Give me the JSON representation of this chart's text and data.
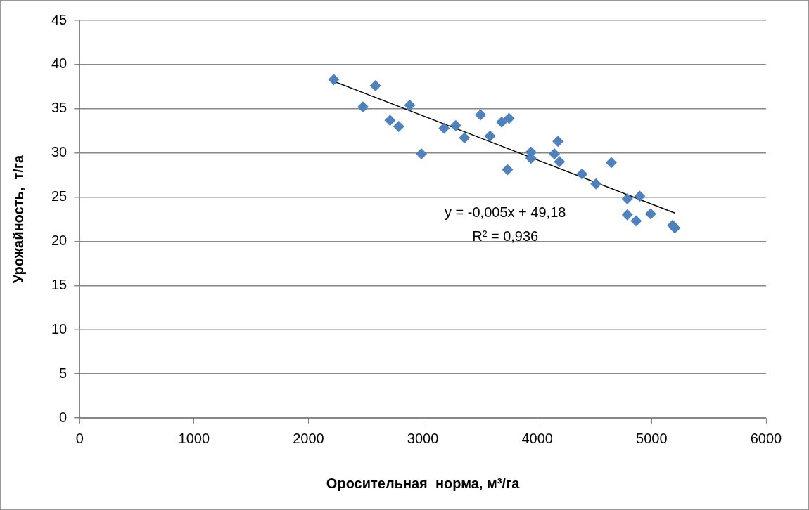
{
  "chart_data": {
    "type": "scatter",
    "xlabel": "Оросительная  норма, м³/га",
    "ylabel": "Урожайность,  т/га",
    "xlim": [
      0,
      6000
    ],
    "xticks": [
      0,
      1000,
      2000,
      3000,
      4000,
      5000,
      6000
    ],
    "ylim": [
      0,
      45
    ],
    "yticks": [
      0,
      5,
      10,
      15,
      20,
      25,
      30,
      35,
      40,
      45
    ],
    "grid": "y",
    "legend": false,
    "marker": "diamond",
    "series": [
      {
        "color": "#4f81bd",
        "x": [
          2221,
          2477,
          2585,
          2713,
          2789,
          2885,
          2987,
          3185,
          3287,
          3364,
          3504,
          3587,
          3689,
          3740,
          3753,
          3945,
          3945,
          4149,
          4181,
          4194,
          4391,
          4513,
          4647,
          4787,
          4787,
          4864,
          4896,
          4991,
          5183,
          5202
        ],
        "values": [
          38.3,
          35.2,
          37.6,
          33.7,
          33.0,
          35.4,
          29.9,
          32.8,
          33.1,
          31.7,
          34.3,
          31.9,
          33.5,
          28.1,
          33.9,
          30.1,
          29.4,
          29.9,
          31.3,
          29.0,
          27.6,
          26.5,
          28.9,
          24.8,
          23.0,
          22.3,
          25.1,
          23.1,
          21.8,
          21.5
        ]
      },
      {
        "type": "line",
        "color": "#000000",
        "marker": "none",
        "line_style": "solid",
        "x": [
          2221,
          5202
        ],
        "values": [
          38.1,
          23.2
        ]
      }
    ],
    "annotations": [
      "y = -0,005x + 49,18",
      "R² = 0,936"
    ]
  }
}
